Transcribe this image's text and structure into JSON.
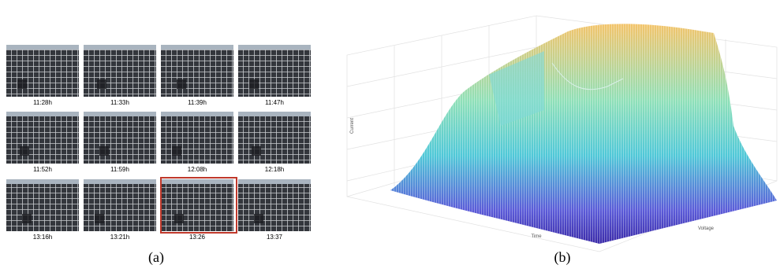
{
  "panel_a": {
    "caption": "(a)",
    "photos": [
      {
        "label": "11:28h"
      },
      {
        "label": "11:33h"
      },
      {
        "label": "11:39h"
      },
      {
        "label": "11:47h"
      },
      {
        "label": "11:52h"
      },
      {
        "label": "11:59h"
      },
      {
        "label": "12:08h"
      },
      {
        "label": "12:18h"
      },
      {
        "label": "13:16h"
      },
      {
        "label": "13:21h"
      },
      {
        "label": "13:26"
      },
      {
        "label": "13:37"
      }
    ]
  },
  "panel_b": {
    "caption": "(b)",
    "z_label": "Current",
    "x_label": "Time",
    "y_label": "Voltage"
  }
}
